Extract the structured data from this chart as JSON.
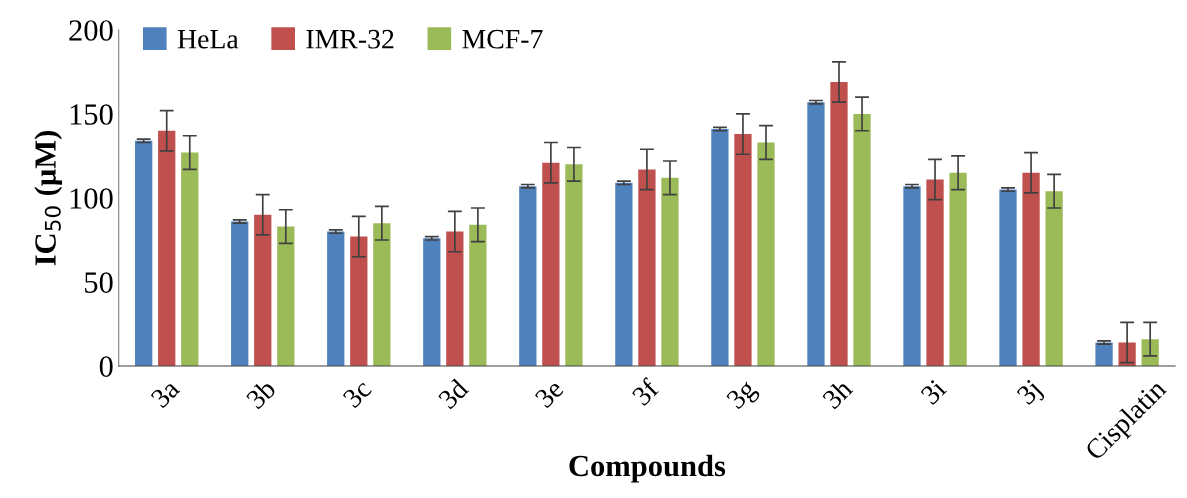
{
  "chart_data": {
    "type": "bar",
    "xlabel": "Compounds",
    "ylabel": "IC$_{50}$ (µM)",
    "categories": [
      "3a",
      "3b",
      "3c",
      "3d",
      "3e",
      "3f",
      "3g",
      "3h",
      "3i",
      "3j",
      "Cisplatin"
    ],
    "series": [
      {
        "name": "HeLa",
        "color": "#4f81bd",
        "values": [
          134,
          86,
          80,
          76,
          107,
          109,
          141,
          157,
          107,
          105,
          14
        ],
        "errors": [
          1,
          1,
          1,
          1,
          1,
          1,
          1,
          1,
          1,
          1,
          1
        ]
      },
      {
        "name": "IMR-32",
        "color": "#c0504d",
        "values": [
          140,
          90,
          77,
          80,
          121,
          117,
          138,
          169,
          111,
          115,
          14
        ],
        "errors": [
          12,
          12,
          12,
          12,
          12,
          12,
          12,
          12,
          12,
          12,
          12
        ]
      },
      {
        "name": "MCF-7",
        "color": "#9bbb59",
        "values": [
          127,
          83,
          85,
          84,
          120,
          112,
          133,
          150,
          115,
          104,
          16
        ],
        "errors": [
          10,
          10,
          10,
          10,
          10,
          10,
          10,
          10,
          10,
          10,
          10
        ]
      }
    ],
    "ylim": [
      0,
      200
    ],
    "yticks": [
      0,
      50,
      100,
      150,
      200
    ],
    "grid": false,
    "legend": "top left"
  }
}
